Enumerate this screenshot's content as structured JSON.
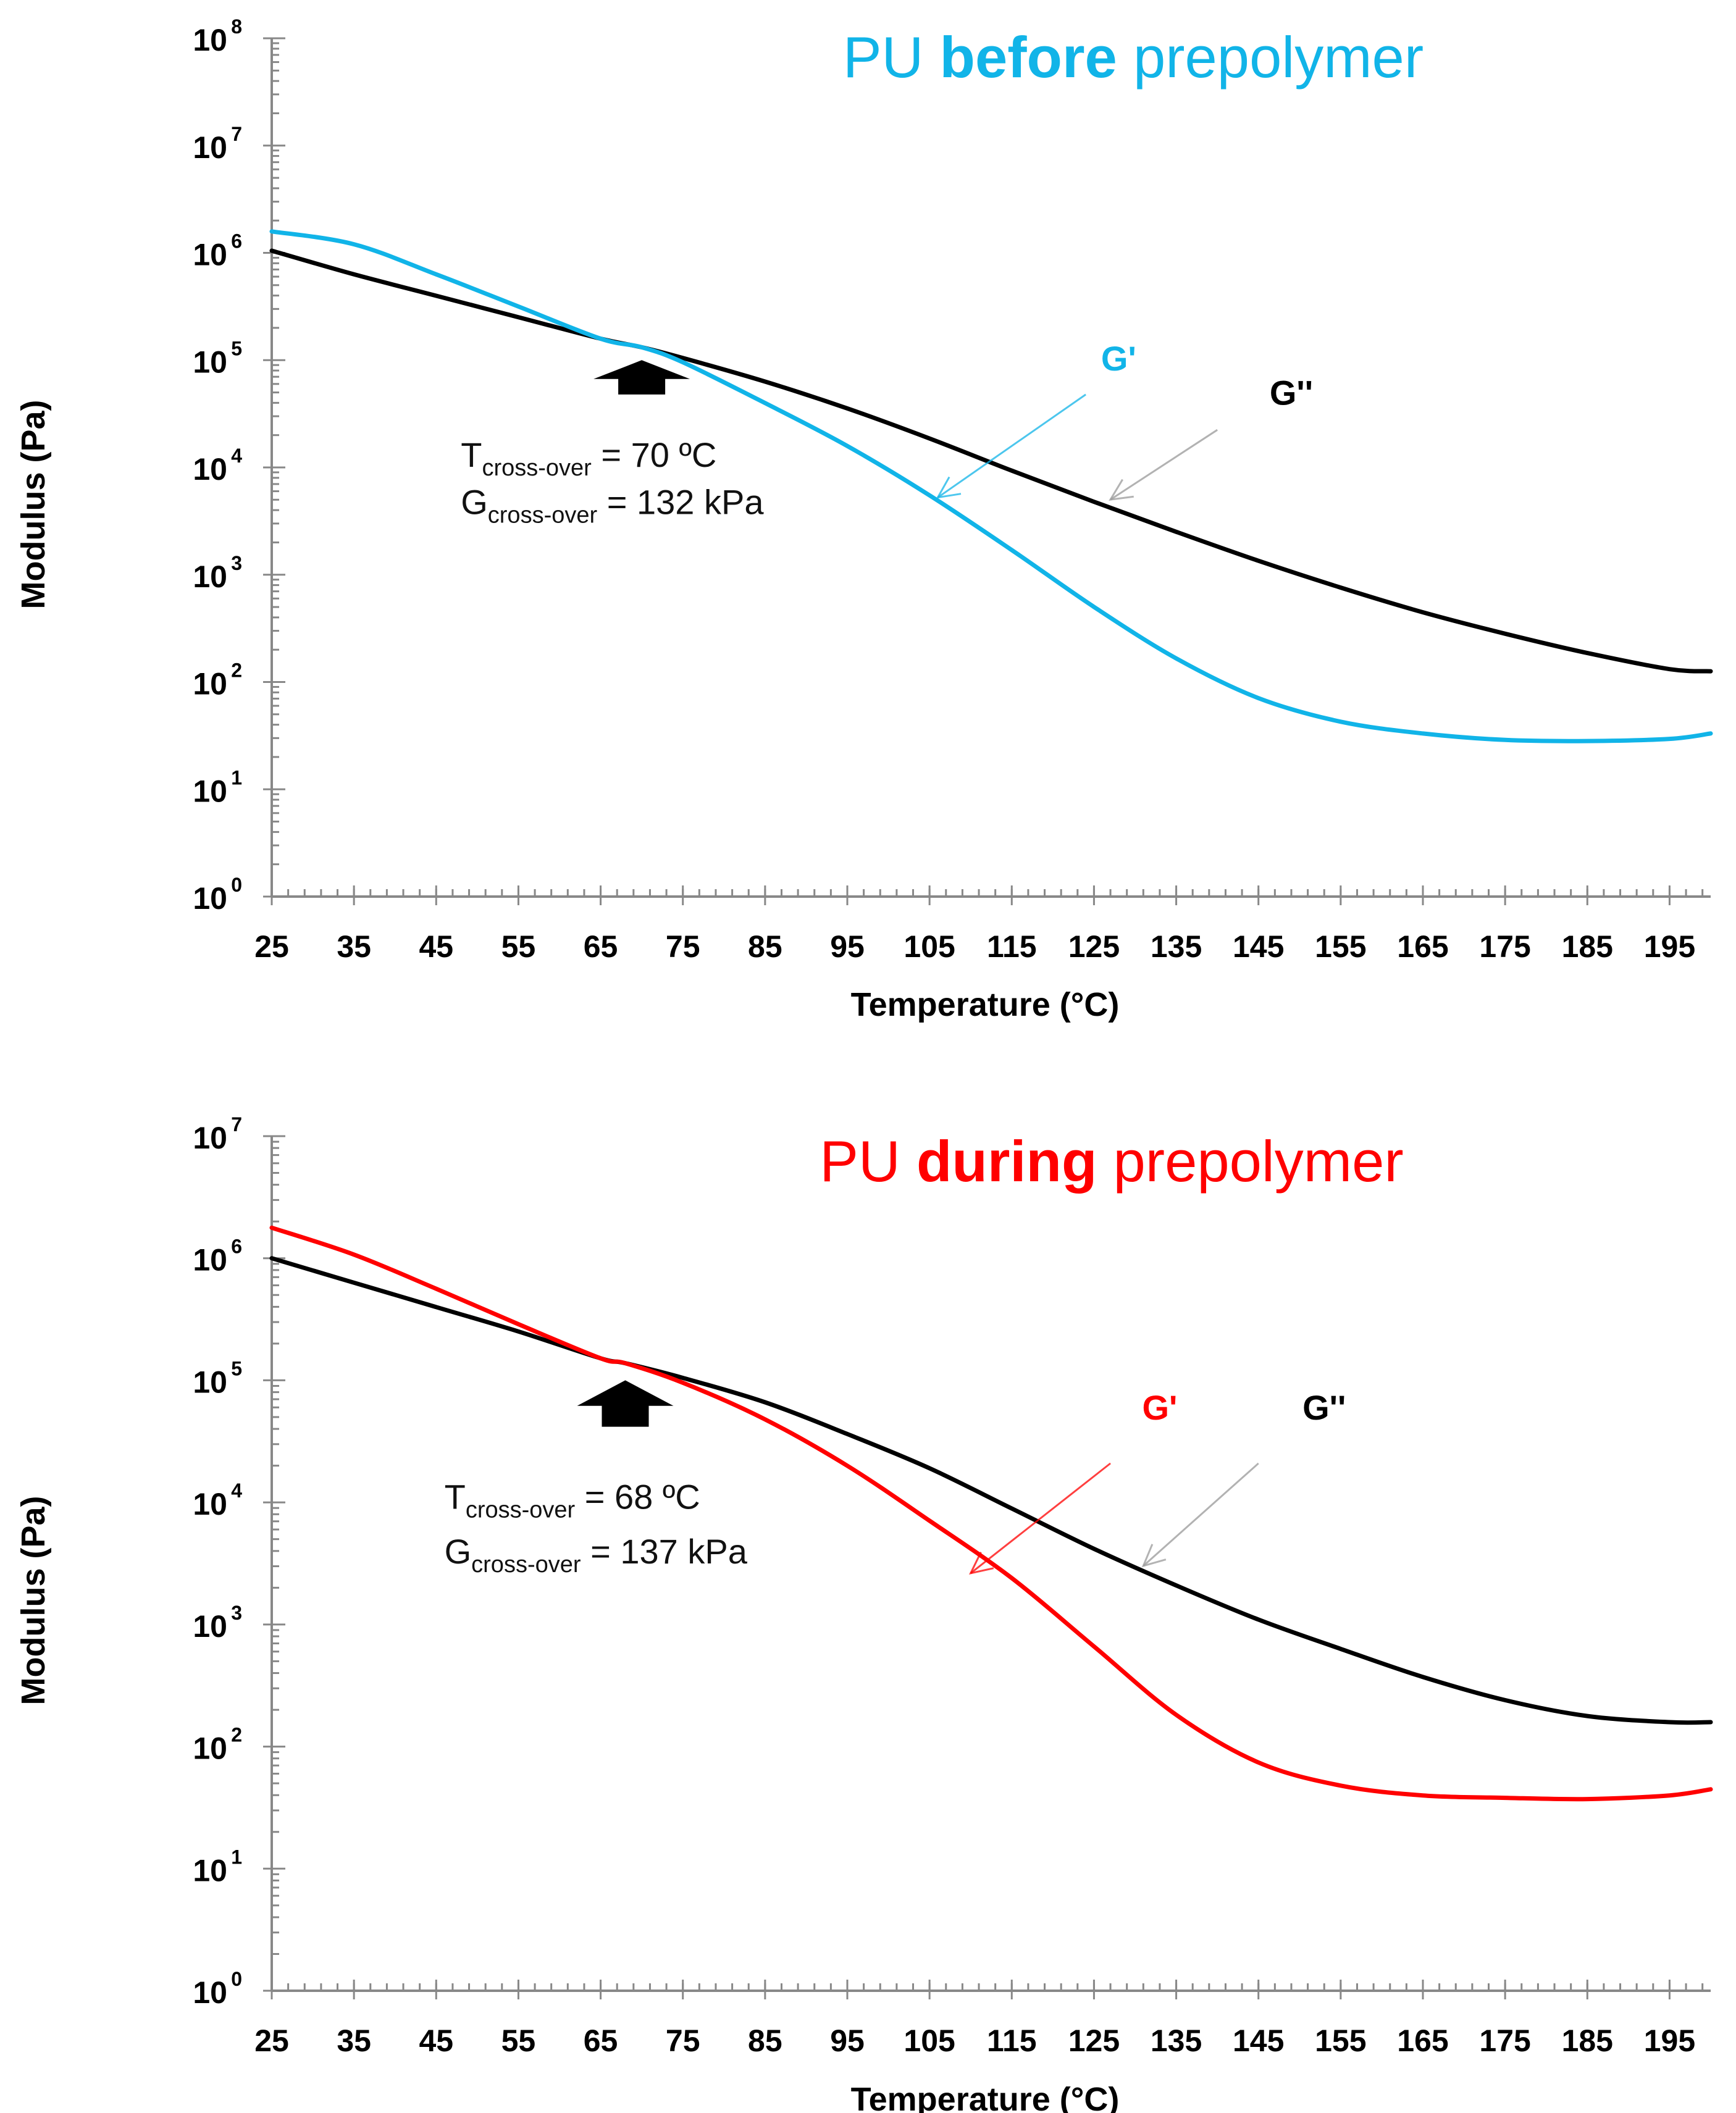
{
  "chart_data": [
    {
      "type": "line",
      "title": {
        "prefix": "PU ",
        "bold": "before",
        "suffix": " prepolymer"
      },
      "title_color": "#11b4e8",
      "xlabel": "Temperature (°C)",
      "ylabel": "Modulus (Pa)",
      "xlim": [
        25,
        200
      ],
      "ylim_log10": [
        0,
        8
      ],
      "yscale": "log",
      "x_ticks": [
        "25",
        "35",
        "45",
        "55",
        "65",
        "75",
        "85",
        "95",
        "105",
        "115",
        "125",
        "135",
        "145",
        "155",
        "165",
        "175",
        "185",
        "195"
      ],
      "y_ticks": [
        {
          "base": "10",
          "exp": "0"
        },
        {
          "base": "10",
          "exp": "1"
        },
        {
          "base": "10",
          "exp": "2"
        },
        {
          "base": "10",
          "exp": "3"
        },
        {
          "base": "10",
          "exp": "4"
        },
        {
          "base": "10",
          "exp": "5"
        },
        {
          "base": "10",
          "exp": "6"
        },
        {
          "base": "10",
          "exp": "7"
        },
        {
          "base": "10",
          "exp": "8"
        }
      ],
      "series": [
        {
          "name": "G'",
          "color": "#11b4e8",
          "x": [
            25,
            35,
            45,
            55,
            65,
            70,
            75,
            85,
            95,
            105,
            115,
            125,
            135,
            145,
            155,
            165,
            175,
            185,
            195,
            200
          ],
          "y_log10": [
            6.2,
            6.08,
            5.8,
            5.5,
            5.2,
            5.12,
            4.98,
            4.6,
            4.2,
            3.74,
            3.23,
            2.7,
            2.22,
            1.85,
            1.63,
            1.52,
            1.46,
            1.45,
            1.47,
            1.52
          ]
        },
        {
          "name": "G''",
          "color": "#000000",
          "x": [
            25,
            35,
            45,
            55,
            65,
            70,
            75,
            85,
            95,
            105,
            115,
            125,
            135,
            145,
            155,
            165,
            175,
            185,
            195,
            200
          ],
          "y_log10": [
            6.02,
            5.8,
            5.6,
            5.4,
            5.2,
            5.12,
            5.02,
            4.8,
            4.55,
            4.27,
            3.97,
            3.68,
            3.4,
            3.13,
            2.88,
            2.65,
            2.45,
            2.27,
            2.12,
            2.1
          ]
        }
      ],
      "series_labels": [
        {
          "text": "G'",
          "color": "#11b4e8",
          "label_x": 128,
          "label_log10": 5.02,
          "arrow_from": [
            124,
            4.68
          ],
          "arrow_to": [
            106,
            3.72
          ]
        },
        {
          "text": "G''",
          "color": "#000000",
          "label_x": 149,
          "label_log10": 4.7,
          "arrow_from": [
            140,
            4.35
          ],
          "arrow_to": [
            127,
            3.7
          ]
        }
      ],
      "crossover_arrow": {
        "x": 70,
        "tip_log10": 5.0,
        "base_log10": 4.68
      },
      "annotation": {
        "t_main": "T",
        "t_sub": "cross-over",
        "t_value": " = 70 ºC",
        "g_main": "G",
        "g_sub": "cross-over",
        "g_value": " = 132 kPa",
        "x": 48,
        "t_log10": 4.12,
        "g_log10": 3.68
      }
    },
    {
      "type": "line",
      "title": {
        "prefix": "PU ",
        "bold": "during",
        "suffix": " prepolymer"
      },
      "title_color": "#ff0000",
      "xlabel": "Temperature (°C)",
      "ylabel": "Modulus (Pa)",
      "xlim": [
        25,
        200
      ],
      "ylim_log10": [
        0,
        7
      ],
      "yscale": "log",
      "x_ticks": [
        "25",
        "35",
        "45",
        "55",
        "65",
        "75",
        "85",
        "95",
        "105",
        "115",
        "125",
        "135",
        "145",
        "155",
        "165",
        "175",
        "185",
        "195"
      ],
      "y_ticks": [
        {
          "base": "10",
          "exp": "0"
        },
        {
          "base": "10",
          "exp": "1"
        },
        {
          "base": "10",
          "exp": "2"
        },
        {
          "base": "10",
          "exp": "3"
        },
        {
          "base": "10",
          "exp": "4"
        },
        {
          "base": "10",
          "exp": "5"
        },
        {
          "base": "10",
          "exp": "6"
        },
        {
          "base": "10",
          "exp": "7"
        }
      ],
      "series": [
        {
          "name": "G'",
          "color": "#ff0000",
          "x": [
            25,
            35,
            45,
            55,
            65,
            68,
            75,
            85,
            95,
            105,
            115,
            125,
            135,
            145,
            155,
            165,
            175,
            185,
            195,
            200
          ],
          "y_log10": [
            6.25,
            6.03,
            5.75,
            5.46,
            5.18,
            5.14,
            4.98,
            4.68,
            4.3,
            3.85,
            3.38,
            2.82,
            2.26,
            1.87,
            1.68,
            1.6,
            1.58,
            1.57,
            1.6,
            1.65
          ]
        },
        {
          "name": "G''",
          "color": "#000000",
          "x": [
            25,
            35,
            45,
            55,
            65,
            68,
            75,
            85,
            95,
            105,
            115,
            125,
            135,
            145,
            155,
            165,
            175,
            185,
            195,
            200
          ],
          "y_log10": [
            6.0,
            5.8,
            5.6,
            5.4,
            5.18,
            5.14,
            5.02,
            4.82,
            4.56,
            4.28,
            3.95,
            3.62,
            3.32,
            3.04,
            2.8,
            2.57,
            2.38,
            2.25,
            2.2,
            2.2
          ]
        }
      ],
      "series_labels": [
        {
          "text": "G'",
          "color": "#ff0000",
          "label_x": 133,
          "label_log10": 4.78,
          "arrow_from": [
            127,
            4.32
          ],
          "arrow_to": [
            110,
            3.42
          ]
        },
        {
          "text": "G''",
          "color": "#000000",
          "label_x": 153,
          "label_log10": 4.78,
          "arrow_from": [
            145,
            4.32
          ],
          "arrow_to": [
            131,
            3.48
          ]
        }
      ],
      "crossover_arrow": {
        "x": 68,
        "tip_log10": 5.0,
        "base_log10": 4.62
      },
      "annotation": {
        "t_main": "T",
        "t_sub": "cross-over",
        "t_value": " = 68 ºC",
        "g_main": "G",
        "g_sub": "cross-over",
        "g_value": " = 137 kPa",
        "x": 46,
        "t_log10": 4.05,
        "g_log10": 3.6
      }
    }
  ]
}
